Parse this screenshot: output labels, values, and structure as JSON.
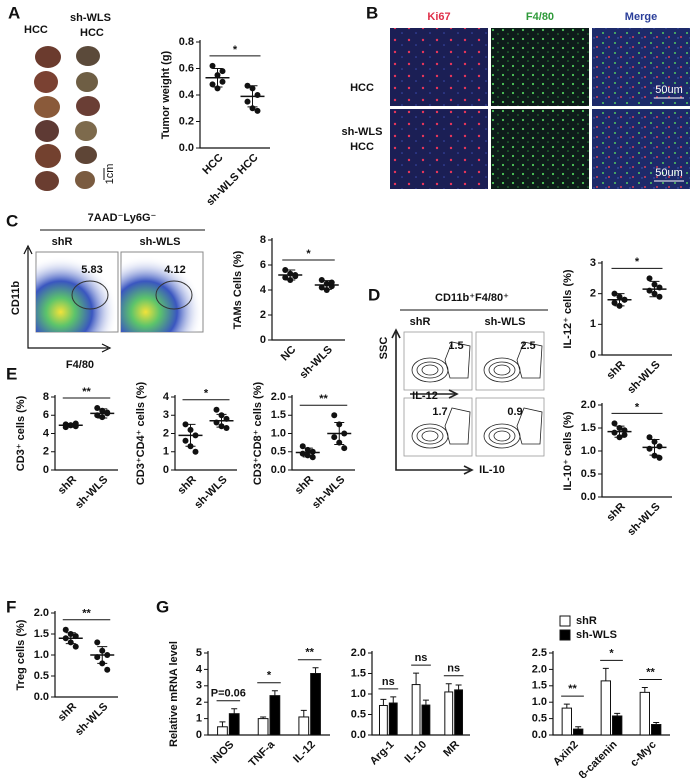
{
  "panel_labels": [
    "A",
    "B",
    "C",
    "D",
    "E",
    "F",
    "G"
  ],
  "panel_a": {
    "photo_labels": [
      "HCC",
      "sh-WLS",
      "HCC"
    ],
    "scale": "1cm"
  },
  "panel_b": {
    "channels": [
      "Ki67",
      "F4/80",
      "Merge"
    ],
    "rows": [
      [
        "HCC"
      ],
      [
        "sh-WLS",
        "HCC"
      ]
    ],
    "scale_bars": [
      "50um",
      "50um"
    ]
  },
  "panel_c": {
    "gate": "7AAD⁻Ly6G⁻",
    "samples": [
      "shR",
      "sh-WLS"
    ],
    "percentages": [
      5.83,
      4.12
    ],
    "x_axis": "F4/80",
    "y_axis": "CD11b"
  },
  "panel_d": {
    "gate": "CD11b⁺F4/80⁺",
    "samples": [
      "shR",
      "sh-WLS"
    ],
    "y_axis": "SSC",
    "markers": [
      "IL-12",
      "IL-10"
    ],
    "percentages": [
      [
        1.5,
        2.5
      ],
      [
        1.7,
        0.9
      ]
    ]
  },
  "chart_data": [
    {
      "type": "dot",
      "ylabel": "Tumor weight (g)",
      "categories": [
        "HCC",
        "sh-WLS HCC"
      ],
      "values": [
        [
          0.62,
          0.55,
          0.5,
          0.48,
          0.45,
          0.58
        ],
        [
          0.47,
          0.45,
          0.4,
          0.35,
          0.3,
          0.28
        ]
      ],
      "means": [
        0.53,
        0.39
      ],
      "sds": [
        0.07,
        0.08
      ],
      "ylim": [
        0,
        0.8
      ],
      "yticks": [
        {
          "value": 0,
          "label": "0.0"
        },
        0.2,
        0.4,
        0.6,
        0.8
      ],
      "significance": "*"
    },
    {
      "type": "dot",
      "ylabel": "TAMs Cells (%)",
      "categories": [
        "NC",
        "sh-WLS"
      ],
      "values": [
        [
          5.6,
          5.3,
          5.1,
          5.0,
          4.8,
          5.2
        ],
        [
          4.8,
          4.5,
          4.3,
          4.2,
          4.0,
          4.6
        ]
      ],
      "means": [
        5.2,
        4.4
      ],
      "sds": [
        0.4,
        0.35
      ],
      "ylim": [
        0,
        8
      ],
      "yticks": [
        0,
        2,
        4,
        6,
        8
      ],
      "significance": "*"
    },
    {
      "type": "dot",
      "ylabel": "IL-12⁺ cells (%)",
      "categories": [
        "shR",
        "sh-WLS"
      ],
      "values": [
        [
          2.0,
          1.9,
          1.8,
          1.7,
          1.6,
          1.8
        ],
        [
          2.5,
          2.3,
          2.2,
          2.1,
          2.0,
          1.9
        ]
      ],
      "means": [
        1.8,
        2.15
      ],
      "sds": [
        0.2,
        0.25
      ],
      "ylim": [
        0,
        3
      ],
      "yticks": [
        0,
        1,
        2,
        3
      ],
      "significance": "*"
    },
    {
      "type": "dot",
      "ylabel": "IL-10⁺ cells (%)",
      "categories": [
        "shR",
        "sh-WLS"
      ],
      "values": [
        [
          1.6,
          1.5,
          1.45,
          1.4,
          1.3,
          1.35
        ],
        [
          1.3,
          1.2,
          1.1,
          1.05,
          0.9,
          0.85
        ]
      ],
      "means": [
        1.42,
        1.08
      ],
      "sds": [
        0.12,
        0.17
      ],
      "ylim": [
        0,
        2
      ],
      "yticks": [
        {
          "value": 0,
          "label": "0.0"
        },
        0.5,
        {
          "value": 1,
          "label": "1.0"
        },
        1.5,
        {
          "value": 2,
          "label": "2.0"
        }
      ],
      "significance": "*"
    },
    {
      "type": "dot",
      "ylabel": "CD3⁺ cells (%)",
      "categories": [
        "shR",
        "sh-WLS"
      ],
      "values": [
        [
          5.0,
          4.9,
          4.8,
          4.7,
          4.9,
          5.1
        ],
        [
          6.8,
          6.5,
          6.2,
          6.0,
          5.8,
          6.3
        ]
      ],
      "means": [
        4.9,
        6.2
      ],
      "sds": [
        0.2,
        0.5
      ],
      "ylim": [
        0,
        8
      ],
      "yticks": [
        0,
        2,
        4,
        6,
        8
      ],
      "significance": "**"
    },
    {
      "type": "dot",
      "ylabel": "CD3⁺CD4⁺ cells (%)",
      "categories": [
        "shR",
        "sh-WLS"
      ],
      "values": [
        [
          2.5,
          2.2,
          1.9,
          1.6,
          1.3,
          1.0
        ],
        [
          3.3,
          3.0,
          2.8,
          2.6,
          2.4,
          2.3
        ]
      ],
      "means": [
        1.9,
        2.7
      ],
      "sds": [
        0.6,
        0.35
      ],
      "ylim": [
        0,
        4
      ],
      "yticks": [
        0,
        1,
        2,
        3,
        4
      ],
      "significance": "*"
    },
    {
      "type": "dot",
      "ylabel": "CD3⁺CD8⁺ cells (%)",
      "categories": [
        "shR",
        "sh-WLS"
      ],
      "values": [
        [
          0.65,
          0.55,
          0.5,
          0.45,
          0.4,
          0.35
        ],
        [
          1.5,
          1.25,
          1.0,
          0.9,
          0.75,
          0.6
        ]
      ],
      "means": [
        0.48,
        1.0
      ],
      "sds": [
        0.12,
        0.3
      ],
      "ylim": [
        0,
        2
      ],
      "yticks": [
        {
          "value": 0,
          "label": "0.0"
        },
        0.5,
        {
          "value": 1,
          "label": "1.0"
        },
        1.5,
        {
          "value": 2,
          "label": "2.0"
        }
      ],
      "significance": "**"
    },
    {
      "type": "dot",
      "ylabel": "Treg cells (%)",
      "categories": [
        "shR",
        "sh-WLS"
      ],
      "values": [
        [
          1.6,
          1.5,
          1.45,
          1.4,
          1.3,
          1.2
        ],
        [
          1.3,
          1.1,
          1.0,
          0.95,
          0.8,
          0.65
        ]
      ],
      "means": [
        1.4,
        1.0
      ],
      "sds": [
        0.13,
        0.2
      ],
      "ylim": [
        0,
        2
      ],
      "yticks": [
        {
          "value": 0,
          "label": "0.0"
        },
        0.5,
        {
          "value": 1,
          "label": "1.0"
        },
        1.5,
        {
          "value": 2,
          "label": "2.0"
        }
      ],
      "significance": "**"
    },
    {
      "type": "bar",
      "ylabel": "Relative mRNA level",
      "categories": [
        "iNOS",
        "TNF-a",
        "IL-12"
      ],
      "series": [
        {
          "name": "shR",
          "color": "#ffffff",
          "values": [
            0.5,
            1.0,
            1.1
          ],
          "errors": [
            0.3,
            0.1,
            0.4
          ]
        },
        {
          "name": "sh-WLS",
          "color": "#000000",
          "values": [
            1.3,
            2.4,
            3.75
          ],
          "errors": [
            0.3,
            0.3,
            0.35
          ]
        }
      ],
      "ylim": [
        0,
        5
      ],
      "yticks": [
        0,
        1,
        2,
        3,
        4,
        5
      ],
      "annotations": [
        "P=0.06",
        "*",
        "**"
      ]
    },
    {
      "type": "bar",
      "categories": [
        "Arg-1",
        "IL-10",
        "MR"
      ],
      "series": [
        {
          "color": "#ffffff",
          "values": [
            0.72,
            1.23,
            1.05
          ],
          "errors": [
            0.15,
            0.28,
            0.2
          ]
        },
        {
          "color": "#000000",
          "values": [
            0.78,
            0.73,
            1.1
          ],
          "errors": [
            0.15,
            0.12,
            0.12
          ]
        }
      ],
      "ylim": [
        0,
        2
      ],
      "yticks": [
        {
          "value": 0,
          "label": "0.0"
        },
        0.5,
        {
          "value": 1,
          "label": "1.0"
        },
        1.5,
        {
          "value": 2,
          "label": "2.0"
        }
      ],
      "annotations": [
        "ns",
        "ns",
        "ns"
      ]
    },
    {
      "type": "bar",
      "categories": [
        "Axin2",
        "β-catenin",
        "c-Myc"
      ],
      "series": [
        {
          "color": "#ffffff",
          "values": [
            0.82,
            1.65,
            1.3
          ],
          "errors": [
            0.12,
            0.38,
            0.15
          ]
        },
        {
          "color": "#000000",
          "values": [
            0.18,
            0.58,
            0.32
          ],
          "errors": [
            0.07,
            0.08,
            0.06
          ]
        }
      ],
      "ylim": [
        0,
        2.5
      ],
      "yticks": [
        {
          "value": 0,
          "label": "0.0"
        },
        0.5,
        {
          "value": 1,
          "label": "1.0"
        },
        1.5,
        {
          "value": 2,
          "label": "2.0"
        },
        2.5
      ],
      "annotations": [
        "**",
        "*",
        "**"
      ]
    }
  ]
}
